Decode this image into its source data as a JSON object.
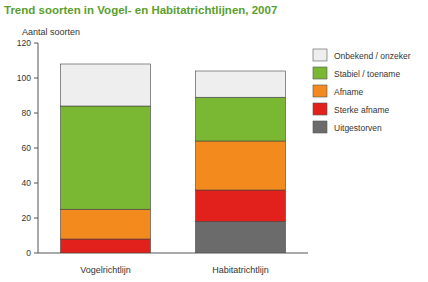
{
  "chart_data": {
    "type": "bar",
    "stacked": true,
    "title": "Trend soorten in Vogel- en Habitatrichtlijnen, 2007",
    "y_label": "Aantal soorten",
    "categories": [
      "Vogelrichtlijn",
      "Habitatrichtlijn"
    ],
    "series": [
      {
        "name": "Uitgestorven",
        "color": "#6b6b6b",
        "values": [
          0,
          18
        ]
      },
      {
        "name": "Sterke afname",
        "color": "#e3211c",
        "values": [
          8,
          18
        ]
      },
      {
        "name": "Afname",
        "color": "#f28a1e",
        "values": [
          17,
          28
        ]
      },
      {
        "name": "Stabiel / toename",
        "color": "#7ab733",
        "values": [
          59,
          25
        ]
      },
      {
        "name": "Onbekend / onzeker",
        "color": "#eeeeee",
        "values": [
          24,
          15
        ]
      }
    ],
    "ylim": [
      0,
      120
    ],
    "yticks": [
      0,
      20,
      40,
      60,
      80,
      100,
      120
    ],
    "grid": false,
    "legend": "right"
  }
}
